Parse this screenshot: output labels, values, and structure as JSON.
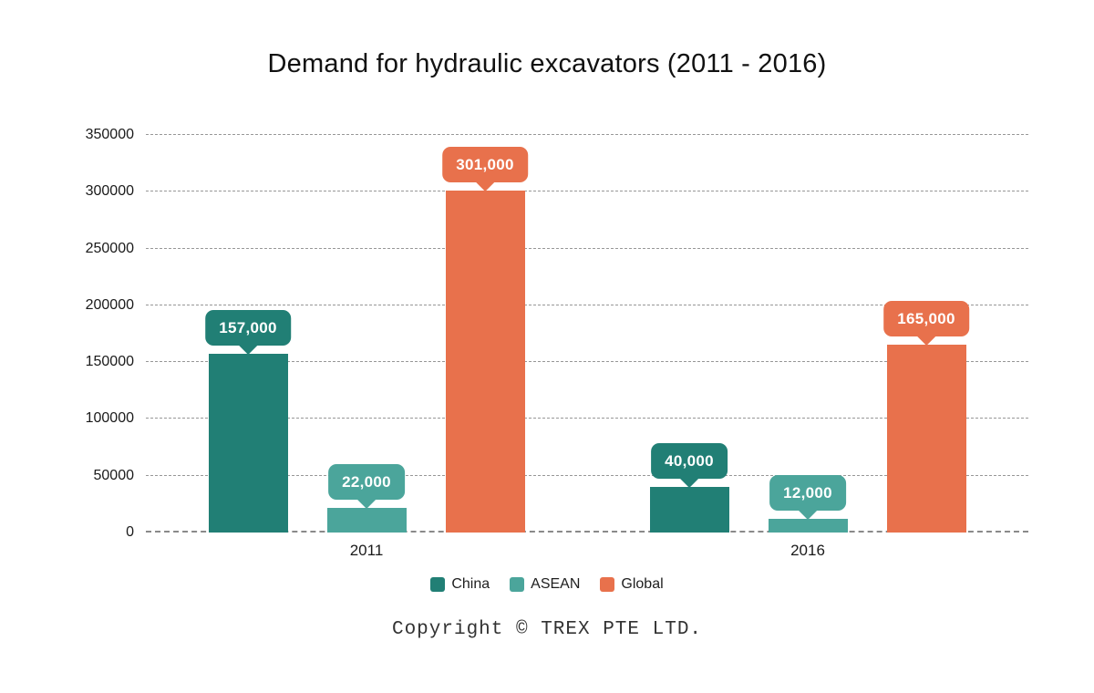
{
  "chart_data": {
    "type": "bar",
    "title": "Demand for hydraulic excavators (2011 - 2016)",
    "categories": [
      "2011",
      "2016"
    ],
    "series": [
      {
        "name": "China",
        "color": "#217f75",
        "values": [
          157000,
          40000
        ],
        "labels": [
          "157,000",
          "40,000"
        ]
      },
      {
        "name": "ASEAN",
        "color": "#4ba59b",
        "values": [
          22000,
          12000
        ],
        "labels": [
          "22,000",
          "12,000"
        ]
      },
      {
        "name": "Global",
        "color": "#e8714c",
        "values": [
          301000,
          165000
        ],
        "labels": [
          "301,000",
          "165,000"
        ]
      }
    ],
    "xlabel": "",
    "ylabel": "",
    "ylim": [
      0,
      350000
    ],
    "ytick_values": [
      0,
      50000,
      100000,
      150000,
      200000,
      250000,
      300000,
      350000
    ],
    "ytick_labels": [
      "0",
      "50000",
      "100000",
      "150000",
      "200000",
      "250000",
      "300000",
      "350000"
    ],
    "grid": "horizontal-dashed",
    "legend_position": "bottom"
  },
  "footer": {
    "copyright": "Copyright © TREX PTE LTD."
  }
}
